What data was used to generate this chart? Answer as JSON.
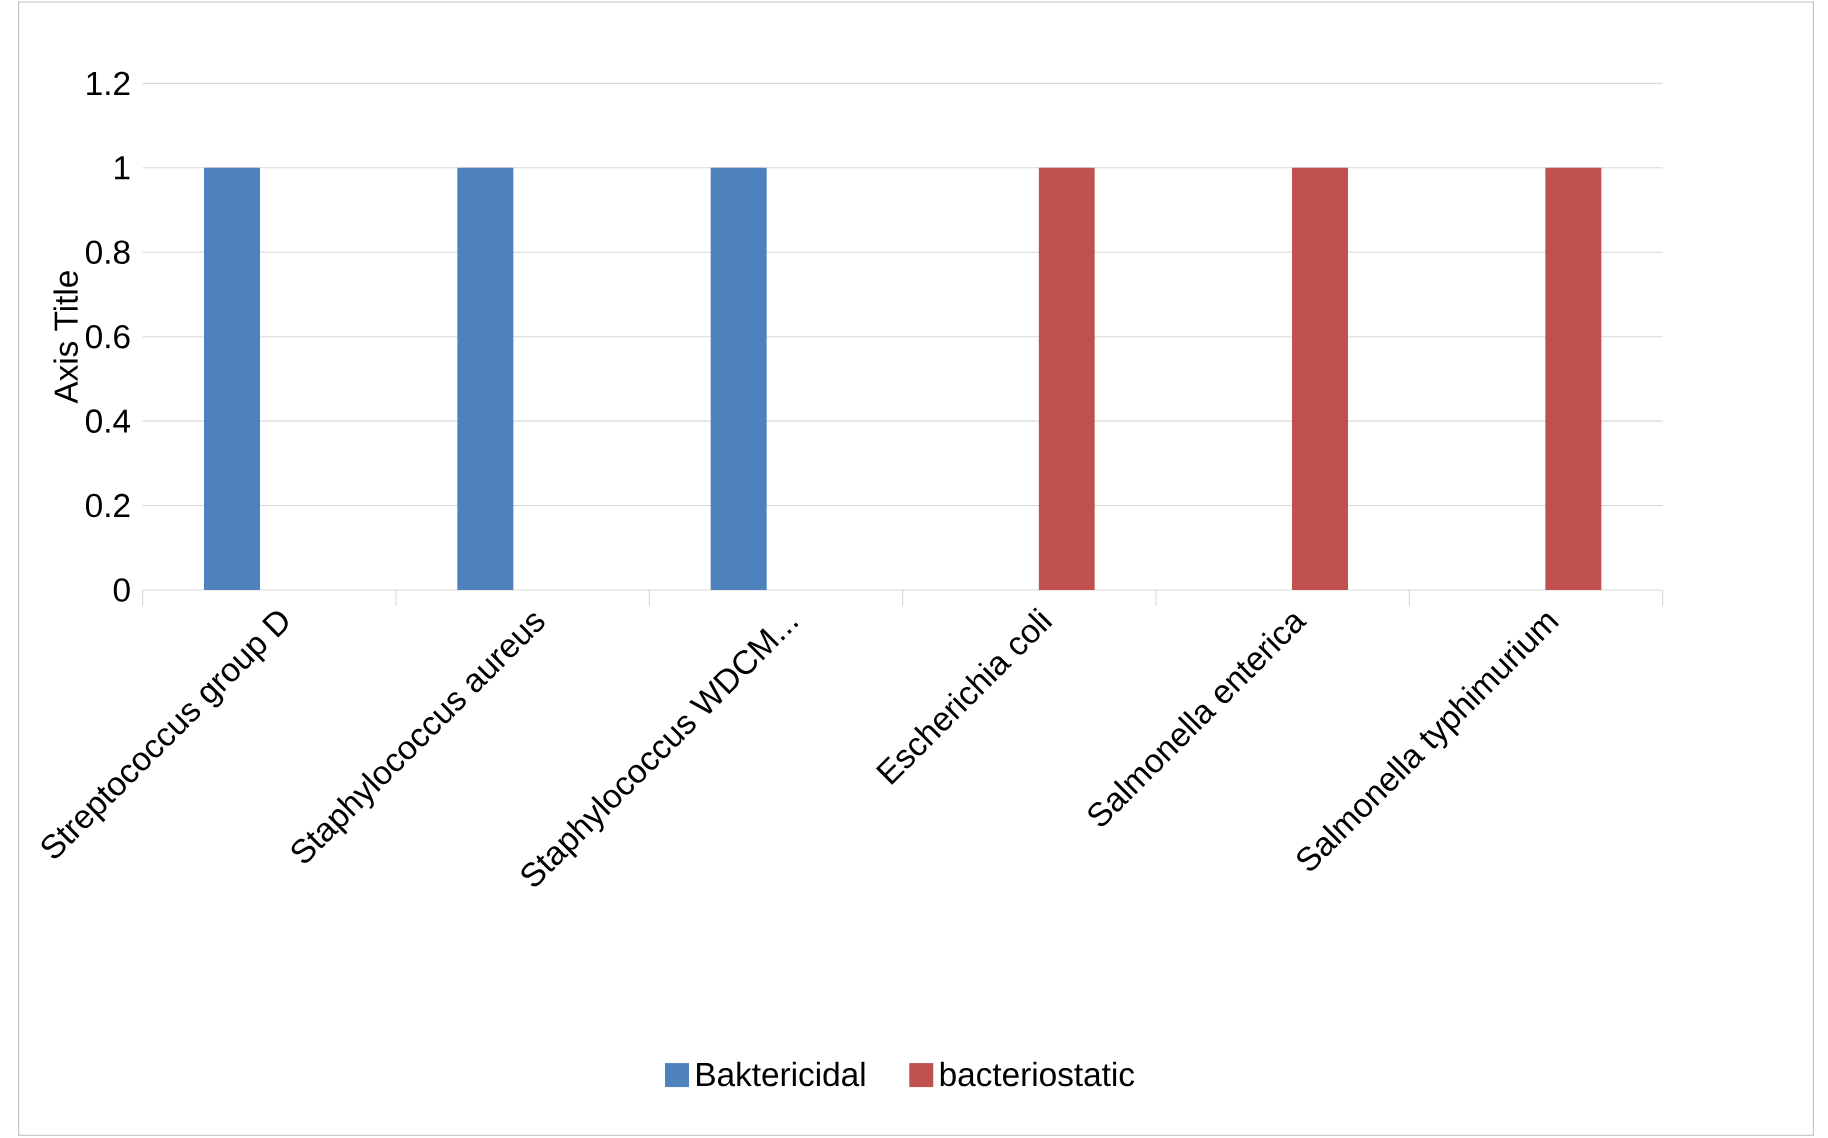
{
  "chart_data": {
    "type": "bar",
    "ylabel": "Axis Title",
    "categories": [
      "Streptococcus group D",
      "Staphylococcus aureus",
      "Staphylococcus WDCM...",
      "Escherichia coli",
      "Salmonella enterica",
      "Salmonella typhimurium"
    ],
    "series": [
      {
        "name": "Baktericidal",
        "color": "#4f81bd",
        "values": [
          1,
          1,
          1,
          null,
          null,
          null
        ]
      },
      {
        "name": "bacteriostatic",
        "color": "#c0504d",
        "values": [
          null,
          null,
          null,
          1,
          1,
          1
        ]
      }
    ],
    "ylim": [
      0,
      1.2
    ],
    "yticks": [
      0,
      0.2,
      0.4,
      0.6,
      0.8,
      1,
      1.2
    ],
    "grid": "y",
    "legend": "bottom"
  }
}
